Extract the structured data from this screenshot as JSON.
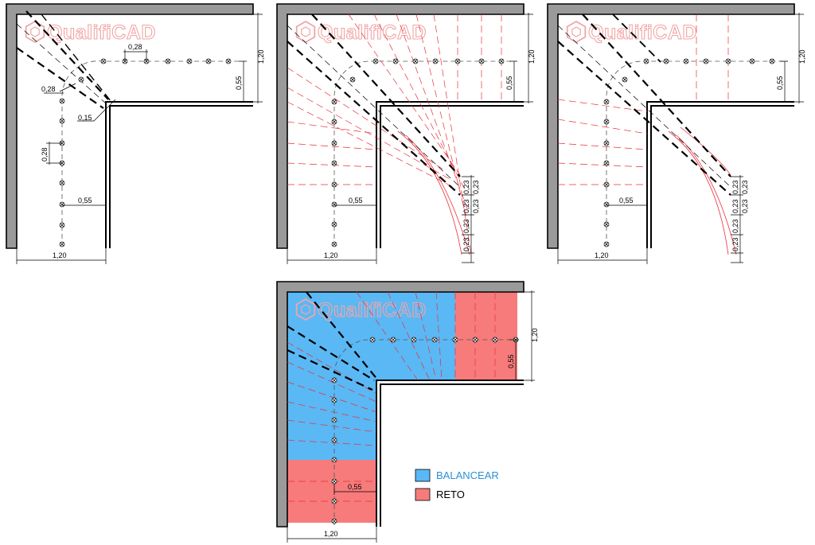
{
  "watermark": "QualifiCAD",
  "panel1": {
    "dim_tread_top": "0,28",
    "dim_tread_diag": "0,28",
    "dim_offset_corner": "0,15",
    "dim_tread_left": "0,28",
    "dim_walkline_bottom": "0,55",
    "dim_width_bottom": "1,20",
    "dim_width_right": "1,20",
    "dim_walkline_right": "0,55"
  },
  "panel2": {
    "dim_width_right": "1,20",
    "dim_walkline_right": "0,55",
    "dim_walkline_bottom": "0,55",
    "dim_width_bottom": "1,20",
    "step_dims": [
      "0,23",
      "0,23",
      "0,23",
      "0,23",
      "0,23",
      "0,23"
    ]
  },
  "panel3": {
    "dim_width_right": "1,20",
    "dim_walkline_right": "0,55",
    "dim_walkline_bottom": "0,55",
    "dim_width_bottom": "1,20",
    "step_dims": [
      "0,23",
      "0,23",
      "0,23",
      "0,23",
      "0,23",
      "0,23"
    ]
  },
  "panel4": {
    "dim_width_right": "1,20",
    "dim_walkline_right": "0,55",
    "dim_walkline_bottom": "0,55",
    "dim_width_bottom": "1,20"
  },
  "legend": {
    "items": [
      {
        "label": "BALANCEAR",
        "color": "#5ab8f5",
        "text_color": "#2b8fd8"
      },
      {
        "label": "RETO",
        "color": "#f77b7b",
        "text_color": "#000000"
      }
    ]
  },
  "colors": {
    "balancear_fill": "#5ab8f5",
    "reto_fill": "#f77b7b",
    "construction": "#e8303a"
  }
}
